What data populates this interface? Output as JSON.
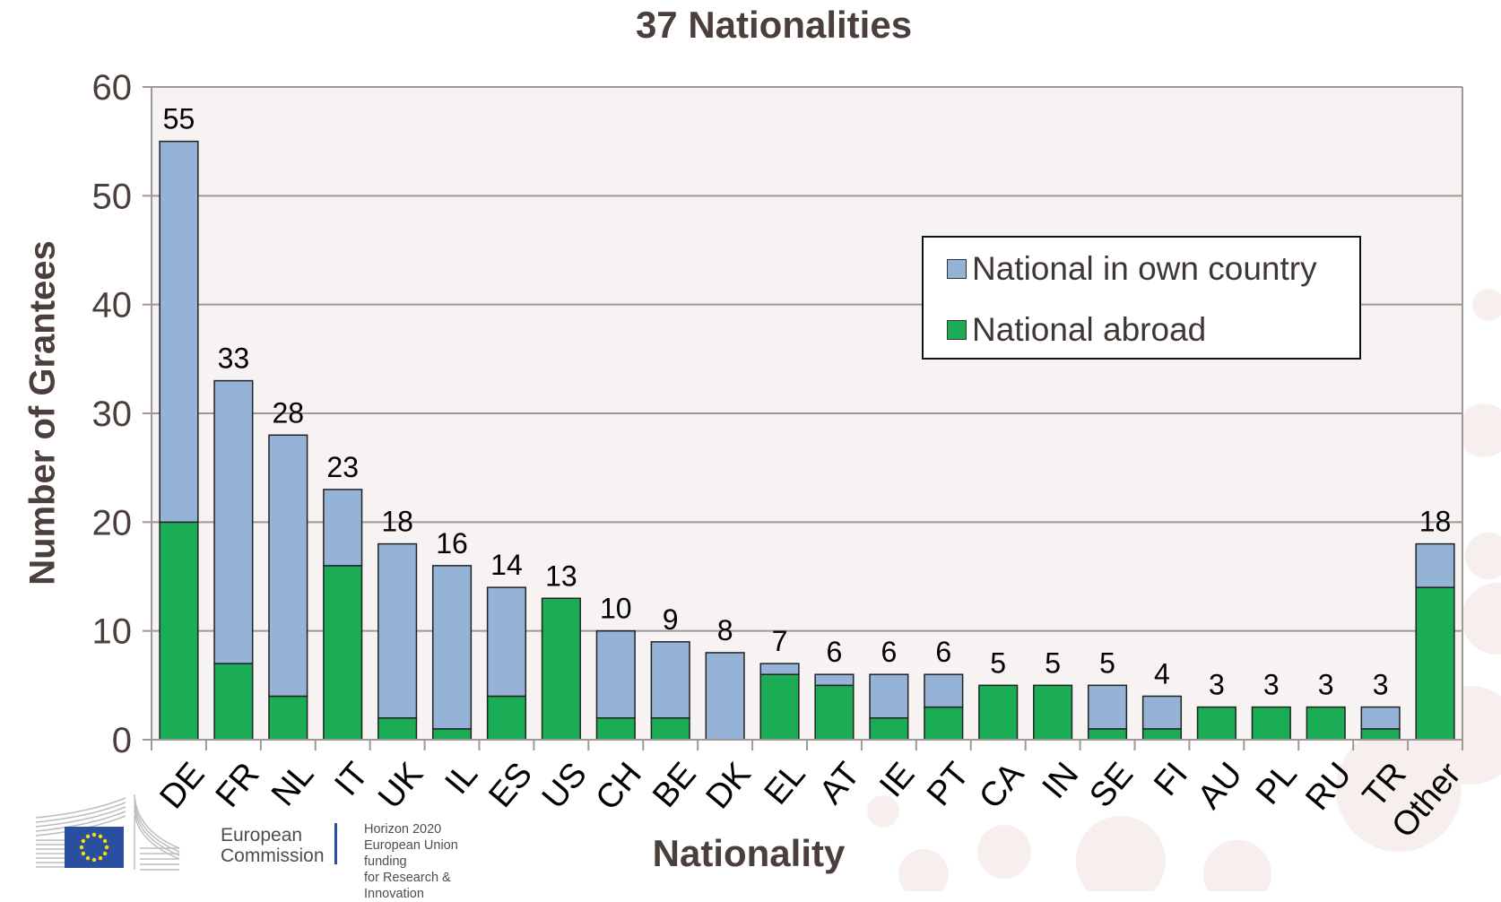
{
  "chart_data": {
    "type": "bar",
    "stacked": true,
    "title": "37 Nationalities",
    "xlabel": "Nationality",
    "ylabel": "Number of Grantees",
    "ylim": [
      0,
      60
    ],
    "yticks": [
      0,
      10,
      20,
      30,
      40,
      50,
      60
    ],
    "grid": true,
    "legend_position": "top-right",
    "categories": [
      "DE",
      "FR",
      "NL",
      "IT",
      "UK",
      "IL",
      "ES",
      "US",
      "CH",
      "BE",
      "DK",
      "EL",
      "AT",
      "IE",
      "PT",
      "CA",
      "IN",
      "SE",
      "FI",
      "AU",
      "PL",
      "RU",
      "TR",
      "Other"
    ],
    "series": [
      {
        "name": "National abroad",
        "color": "#1aad55",
        "values": [
          20,
          7,
          4,
          16,
          2,
          1,
          4,
          13,
          2,
          2,
          0,
          6,
          5,
          2,
          3,
          5,
          5,
          1,
          1,
          3,
          3,
          3,
          1,
          14
        ]
      },
      {
        "name": "National in own country",
        "color": "#95b3d7",
        "values": [
          35,
          26,
          24,
          7,
          16,
          15,
          10,
          0,
          8,
          7,
          8,
          1,
          1,
          4,
          3,
          0,
          0,
          4,
          3,
          0,
          0,
          0,
          2,
          4
        ]
      }
    ],
    "totals": [
      55,
      33,
      28,
      23,
      18,
      16,
      14,
      13,
      10,
      9,
      8,
      7,
      6,
      6,
      6,
      5,
      5,
      5,
      4,
      3,
      3,
      3,
      3,
      18
    ],
    "legend_order": [
      "National in own country",
      "National abroad"
    ]
  },
  "branding": {
    "org_line1": "European",
    "org_line2": "Commission",
    "program_line1": "Horizon 2020",
    "program_line2": "European Union funding",
    "program_line3": "for Research & Innovation"
  },
  "colors": {
    "plot_bg": "#f7f3f2",
    "grid": "#9e9896",
    "text": "#4a3f3a",
    "eu_blue": "#2a4fa0",
    "eu_star": "#ffdd00"
  }
}
